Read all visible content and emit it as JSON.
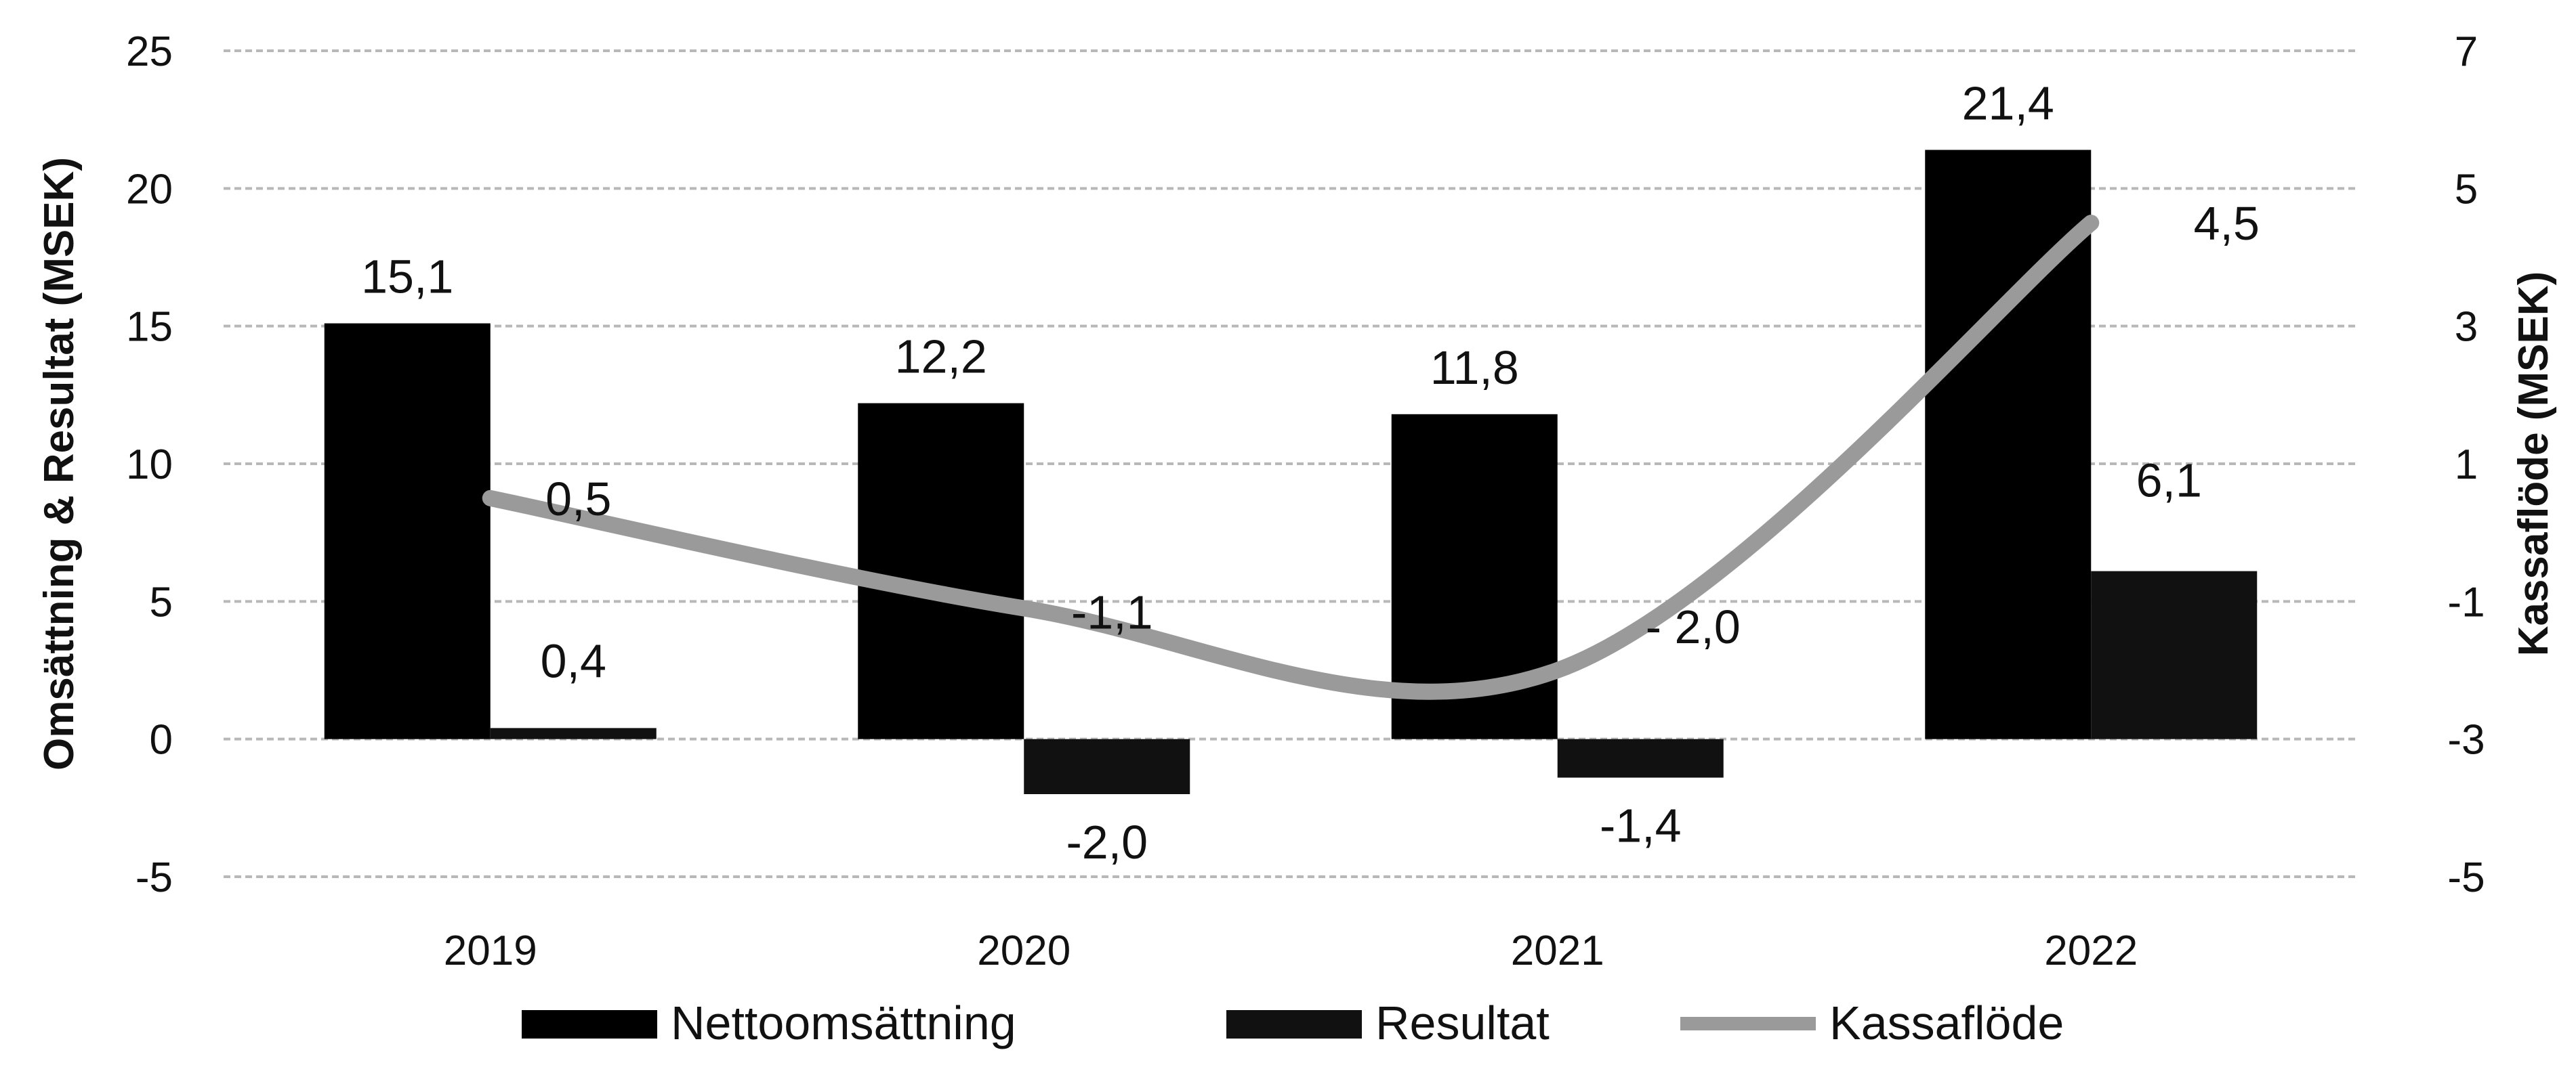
{
  "chart_data": {
    "type": "bar",
    "categories": [
      "2019",
      "2020",
      "2021",
      "2022"
    ],
    "series": [
      {
        "name": "Nettoomsättning",
        "axis": "left",
        "chart_type": "bar",
        "values": [
          15.1,
          12.2,
          11.8,
          21.4
        ],
        "labels": [
          "15,1",
          "12,2",
          "11,8",
          "21,4"
        ],
        "color": "#000000"
      },
      {
        "name": "Resultat",
        "axis": "left",
        "chart_type": "bar",
        "values": [
          0.4,
          -2.0,
          -1.4,
          6.1
        ],
        "labels": [
          "0,4",
          "-2,0",
          "-1,4",
          "6,1"
        ],
        "color": "#111111"
      },
      {
        "name": "Kassaflöde",
        "axis": "right",
        "chart_type": "line",
        "values": [
          0.5,
          -1.1,
          -2.0,
          4.5
        ],
        "labels": [
          "0,5",
          "-1,1",
          "- 2,0",
          "4,5"
        ],
        "color": "#9a9a9a"
      }
    ],
    "ylabel": "Omsättning & Resultat (MSEK)",
    "y2label": "Kassaflöde (MSEK)",
    "ylim": [
      -5,
      25
    ],
    "y2lim": [
      -5,
      7
    ],
    "yticks": [
      "25",
      "20",
      "15",
      "10",
      "5",
      "0",
      "-5"
    ],
    "y2ticks": [
      "7",
      "5",
      "3",
      "1",
      "-1",
      "-3",
      "-5"
    ],
    "grid": true,
    "legend": "bottom"
  }
}
